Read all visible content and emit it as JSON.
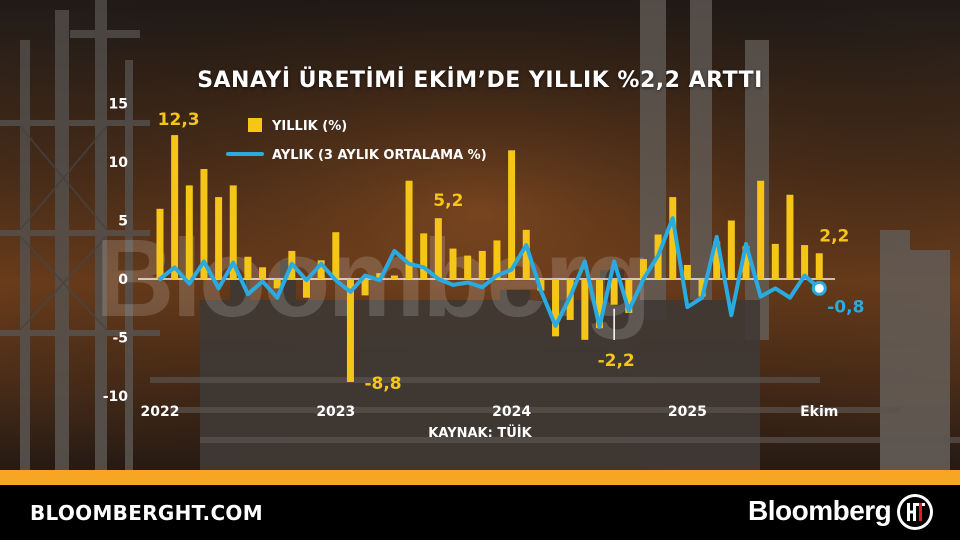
{
  "title": "SANAYİ ÜRETİMİ EKİM’DE YILLIK %2,2 ARTTI",
  "source": "KAYNAK: TÜİK",
  "watermark": "Bloomberg",
  "footer": {
    "site": "BLOOMBERGHT.COM",
    "brand": "Bloomberg",
    "logo_icon": "bloomberght-ht-logo"
  },
  "colors": {
    "bar": "#f5c518",
    "line": "#29abe2",
    "orange_strip": "#f6a623",
    "footer_bg": "#000000",
    "text": "#ffffff"
  },
  "chart_data": {
    "type": "bar",
    "title": "SANAYİ ÜRETİMİ EKİM’DE YILLIK %2,2 ARTTI",
    "ylim": [
      -10,
      15
    ],
    "yticks": [
      "15",
      "10",
      "5",
      "0",
      "-5",
      "-10"
    ],
    "ytick_values": [
      15,
      10,
      5,
      0,
      -5,
      -10
    ],
    "xtick_labels": [
      "2022",
      "2023",
      "2024",
      "2025",
      "Ekim"
    ],
    "xtick_indices": [
      0,
      12,
      24,
      36,
      45
    ],
    "months": [
      "2022-01",
      "2022-02",
      "2022-03",
      "2022-04",
      "2022-05",
      "2022-06",
      "2022-07",
      "2022-08",
      "2022-09",
      "2022-10",
      "2022-11",
      "2022-12",
      "2023-01",
      "2023-02",
      "2023-03",
      "2023-04",
      "2023-05",
      "2023-06",
      "2023-07",
      "2023-08",
      "2023-09",
      "2023-10",
      "2023-11",
      "2023-12",
      "2024-01",
      "2024-02",
      "2024-03",
      "2024-04",
      "2024-05",
      "2024-06",
      "2024-07",
      "2024-08",
      "2024-09",
      "2024-10",
      "2024-11",
      "2024-12",
      "2025-01",
      "2025-02",
      "2025-03",
      "2025-04",
      "2025-05",
      "2025-06",
      "2025-07",
      "2025-08",
      "2025-09",
      "2025-10"
    ],
    "series": [
      {
        "name": "YILLIK (%)",
        "kind": "bar",
        "values": [
          6.0,
          12.3,
          8.0,
          9.4,
          7.0,
          8.0,
          1.9,
          1.0,
          -0.8,
          2.4,
          -1.6,
          1.6,
          4.0,
          -8.8,
          -1.4,
          0.5,
          0.3,
          8.4,
          3.9,
          5.2,
          2.6,
          2.0,
          2.4,
          3.3,
          11.0,
          4.2,
          -1.0,
          -4.9,
          -3.5,
          -5.2,
          -4.2,
          -2.2,
          -2.9,
          1.7,
          3.8,
          7.0,
          1.2,
          -1.5,
          3.2,
          5.0,
          2.8,
          8.4,
          3.0,
          7.2,
          2.9,
          2.2
        ]
      },
      {
        "name": "AYLIK (3 AYLIK ORTALAMA %)",
        "kind": "line",
        "values": [
          0.0,
          1.0,
          -0.4,
          1.5,
          -0.8,
          1.4,
          -1.3,
          -0.2,
          -1.6,
          1.3,
          -0.1,
          1.3,
          -0.1,
          -1.1,
          0.3,
          -0.1,
          2.4,
          1.3,
          1.0,
          0.0,
          -0.5,
          -0.3,
          -0.7,
          0.3,
          0.8,
          2.9,
          -1.0,
          -4.0,
          -1.5,
          1.5,
          -4.1,
          1.5,
          -2.7,
          0.0,
          2.0,
          5.2,
          -2.4,
          -1.6,
          3.6,
          -3.1,
          3.0,
          -1.5,
          -0.8,
          -1.6,
          0.3,
          -0.8
        ]
      }
    ],
    "annotations": [
      {
        "text": "12,3",
        "index": 1,
        "value": 12.3,
        "series": "YILLIK (%)"
      },
      {
        "text": "-8,8",
        "index": 13,
        "value": -8.8,
        "series": "YILLIK (%)"
      },
      {
        "text": "5,2",
        "index": 19,
        "value": 5.2,
        "series": "YILLIK (%)"
      },
      {
        "text": "-2,2",
        "index": 31,
        "value": -2.2,
        "series": "YILLIK (%)"
      },
      {
        "text": "2,2",
        "index": 45,
        "value": 2.2,
        "series": "YILLIK (%)"
      },
      {
        "text": "-0,8",
        "index": 45,
        "value": -0.8,
        "series": "AYLIK (3 AYLIK ORTALAMA %)"
      }
    ],
    "legend_position": "top-left",
    "grid": false
  }
}
